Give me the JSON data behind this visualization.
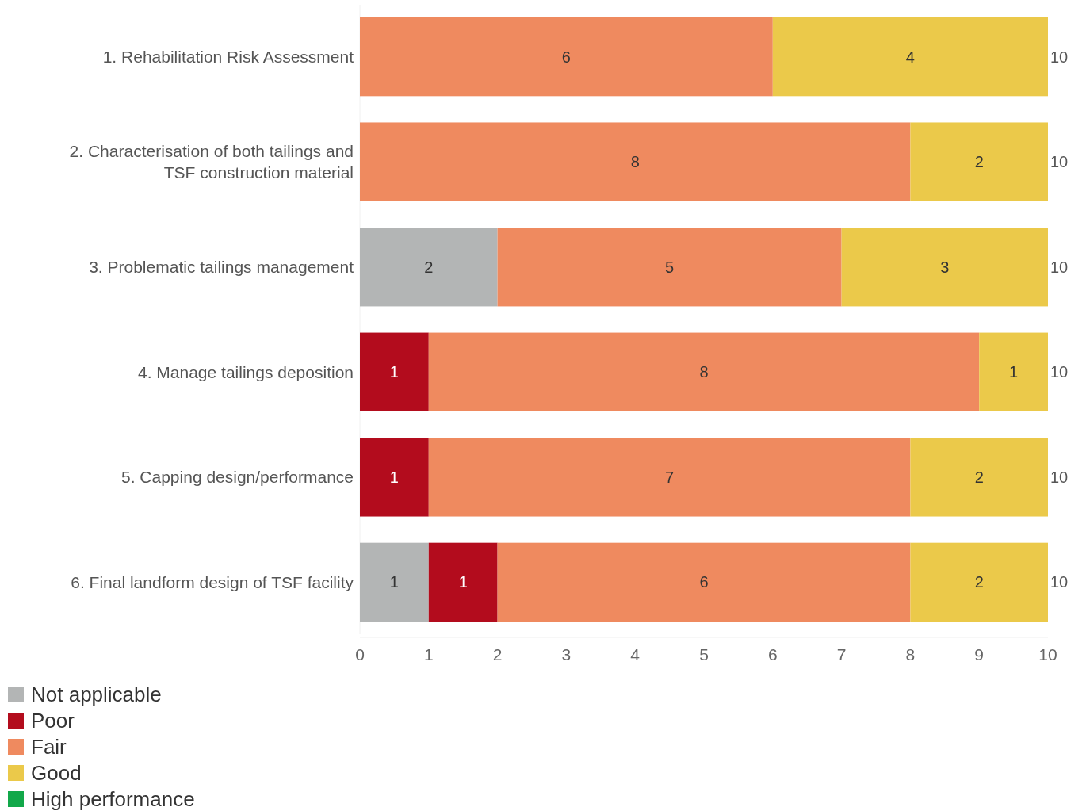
{
  "chart_data": {
    "type": "bar",
    "orientation": "horizontal",
    "stacked": true,
    "categories": [
      "1. Rehabilitation Risk Assessment",
      "2. Characterisation of both tailings and\nTSF construction material",
      "3. Problematic tailings management",
      "4. Manage tailings deposition",
      "5. Capping design/performance",
      "6. Final landform design of TSF facility"
    ],
    "series": [
      {
        "name": "Not applicable",
        "color": "#b3b5b5",
        "values": [
          0,
          0,
          2,
          0,
          0,
          1
        ],
        "value_labels": [
          null,
          null,
          "2",
          null,
          null,
          "1"
        ]
      },
      {
        "name": "Poor",
        "color": "#b30c1d",
        "values": [
          0,
          0,
          0,
          1,
          1,
          1
        ],
        "value_labels": [
          null,
          null,
          null,
          "1",
          "1",
          "1"
        ]
      },
      {
        "name": "Fair",
        "color": "#ef8a5f",
        "values": [
          6,
          8,
          5,
          8,
          7,
          6
        ],
        "value_labels": [
          "6",
          "8",
          "5",
          "8",
          "7",
          "6"
        ]
      },
      {
        "name": "Good",
        "color": "#ebc94a",
        "values": [
          4,
          2,
          3,
          1,
          2,
          2
        ],
        "value_labels": [
          "4",
          "2",
          "3",
          "1",
          "2",
          "2"
        ]
      },
      {
        "name": "High performance",
        "color": "#12a84a",
        "values": [
          0,
          0,
          0,
          0,
          0,
          0
        ],
        "value_labels": [
          null,
          null,
          null,
          null,
          null,
          null
        ]
      }
    ],
    "xlim": [
      0,
      10
    ],
    "xticks": [
      0,
      1,
      2,
      3,
      4,
      5,
      6,
      7,
      8,
      9,
      10
    ],
    "totals": [
      "10",
      "10",
      "10",
      "10",
      "10",
      "10"
    ],
    "legend": "bottom left"
  }
}
